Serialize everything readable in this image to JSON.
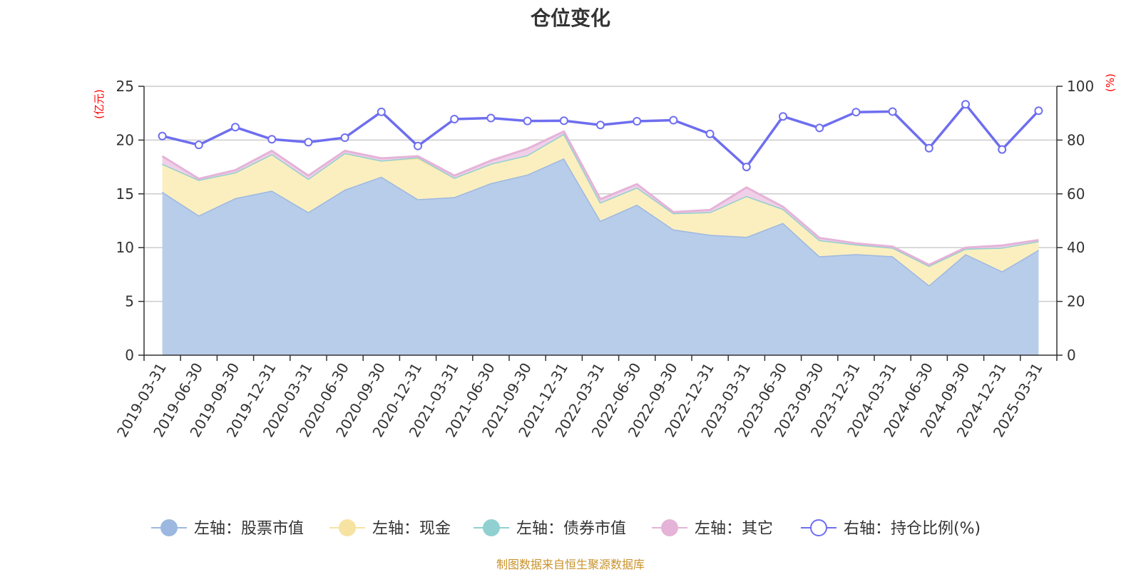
{
  "header": {
    "title": "仓位变化"
  },
  "footer": {
    "source": "制图数据来自恒生聚源数据库"
  },
  "chart_data": {
    "type": "area",
    "title": "仓位变化",
    "categories": [
      "2019-03-31",
      "2019-06-30",
      "2019-09-30",
      "2019-12-31",
      "2020-03-31",
      "2020-06-30",
      "2020-09-30",
      "2020-12-31",
      "2021-03-31",
      "2021-06-30",
      "2021-09-30",
      "2021-12-31",
      "2022-03-31",
      "2022-06-30",
      "2022-09-30",
      "2022-12-31",
      "2023-03-31",
      "2023-06-30",
      "2023-09-30",
      "2023-12-31",
      "2024-03-31",
      "2024-06-30",
      "2024-09-30",
      "2024-12-31",
      "2025-03-31"
    ],
    "left_axis": {
      "label": "(亿元)",
      "ylim": [
        0,
        25
      ],
      "ticks": [
        0,
        5,
        10,
        15,
        20,
        25
      ]
    },
    "right_axis": {
      "label": "(%)",
      "ylim": [
        0,
        100
      ],
      "ticks": [
        0,
        20,
        40,
        60,
        80,
        100
      ]
    },
    "grid": true,
    "legend_position": "bottom",
    "stack": [
      "left_stock",
      "left_cash",
      "left_bond",
      "left_other"
    ],
    "series": [
      {
        "id": "left_stock",
        "name": "左轴：股票市值",
        "axis": "left",
        "color": "#9db8e0",
        "fill": "#b8cdea",
        "values": [
          15.2,
          13.0,
          14.6,
          15.3,
          13.3,
          15.4,
          16.6,
          14.5,
          14.7,
          16.0,
          16.8,
          18.3,
          12.5,
          14.0,
          11.7,
          11.2,
          11.0,
          12.3,
          9.2,
          9.4,
          9.2,
          6.5,
          9.4,
          7.8,
          9.8
        ]
      },
      {
        "id": "left_cash",
        "name": "左轴：现金",
        "axis": "left",
        "color": "#f7e3a1",
        "fill": "#fbefc0",
        "values": [
          2.6,
          3.3,
          2.4,
          3.4,
          3.1,
          3.4,
          1.5,
          3.8,
          1.8,
          1.8,
          1.8,
          2.3,
          1.7,
          1.6,
          1.5,
          2.1,
          3.8,
          1.3,
          1.5,
          0.9,
          0.8,
          1.8,
          0.5,
          2.2,
          0.8
        ]
      },
      {
        "id": "left_bond",
        "name": "左轴：债券市值",
        "axis": "left",
        "color": "#91d0d0",
        "fill": "#a7dcdc",
        "values": [
          0,
          0,
          0,
          0,
          0,
          0,
          0,
          0.1,
          0,
          0,
          0,
          0,
          0,
          0,
          0,
          0,
          0,
          0,
          0,
          0,
          0,
          0,
          0,
          0,
          0
        ]
      },
      {
        "id": "left_other",
        "name": "左轴：其它",
        "axis": "left",
        "color": "#e5b3d8",
        "fill": "#f0d0e8",
        "values": [
          0.7,
          0.1,
          0.2,
          0.3,
          0.3,
          0.2,
          0.2,
          0.1,
          0.2,
          0.3,
          0.6,
          0.2,
          0.3,
          0.3,
          0.1,
          0.2,
          0.8,
          0.2,
          0.2,
          0.1,
          0.1,
          0.1,
          0.1,
          0.2,
          0.1
        ]
      },
      {
        "id": "right_ratio",
        "name": "右轴：持仓比例(%)",
        "axis": "right",
        "type": "line",
        "color": "#6e6ef0",
        "values": [
          81.5,
          78.2,
          84.8,
          80.3,
          79.2,
          80.9,
          90.5,
          77.8,
          87.8,
          88.2,
          87.1,
          87.2,
          85.6,
          87.0,
          87.4,
          82.3,
          70.0,
          88.8,
          84.5,
          90.4,
          90.6,
          77.0,
          93.3,
          76.5,
          90.9
        ]
      }
    ]
  }
}
